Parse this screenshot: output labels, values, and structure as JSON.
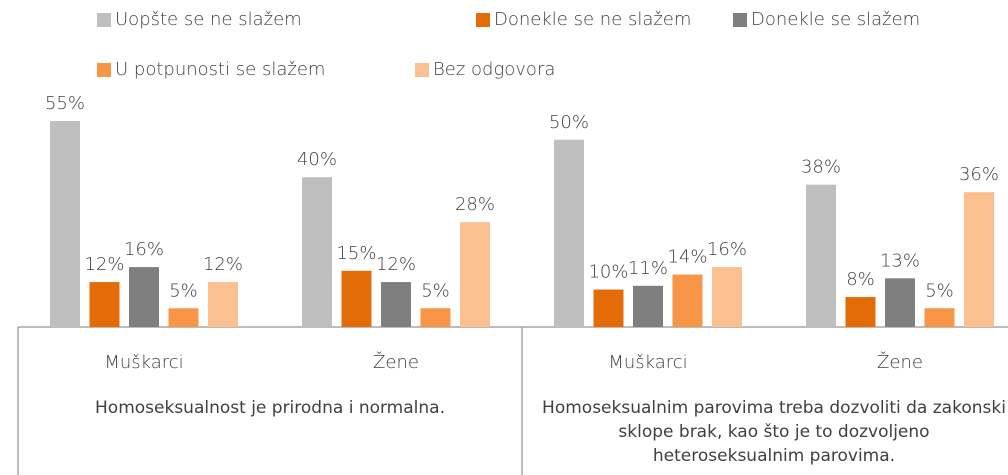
{
  "chart_data": {
    "type": "bar",
    "categories": [
      "Muškarci",
      "Žene",
      "Muškarci",
      "Žene"
    ],
    "category_groups": [
      "Homoseksualnost je prirodna i normalna.",
      "Homoseksualnim parovima treba dozvoliti da zakonski sklope brak, kao što je to dozvoljeno heteroseksualnim parovima."
    ],
    "series": [
      {
        "name": "Uopšte se ne slažem",
        "color": "#bfbfbf",
        "values": [
          55,
          40,
          50,
          38
        ],
        "value_labels": [
          "55%",
          "40%",
          "50%",
          "38%"
        ]
      },
      {
        "name": "Donekle se ne slažem",
        "color": "#e36c09",
        "values": [
          12,
          15,
          10,
          8
        ],
        "value_labels": [
          "12%",
          "15%",
          "10%",
          "8%"
        ]
      },
      {
        "name": "Donekle se slažem",
        "color": "#7f7f7f",
        "values": [
          16,
          12,
          11,
          13
        ],
        "value_labels": [
          "16%",
          "12%",
          "11%",
          "13%"
        ]
      },
      {
        "name": "U potpunosti se slažem",
        "color": "#f79646",
        "values": [
          5,
          5,
          14,
          5
        ],
        "value_labels": [
          "5%",
          "5%",
          "14%",
          "5%"
        ]
      },
      {
        "name": "Bez odgovora",
        "color": "#fac090",
        "values": [
          12,
          28,
          16,
          36
        ],
        "value_labels": [
          "12%",
          "28%",
          "16%",
          "36%"
        ]
      }
    ]
  }
}
